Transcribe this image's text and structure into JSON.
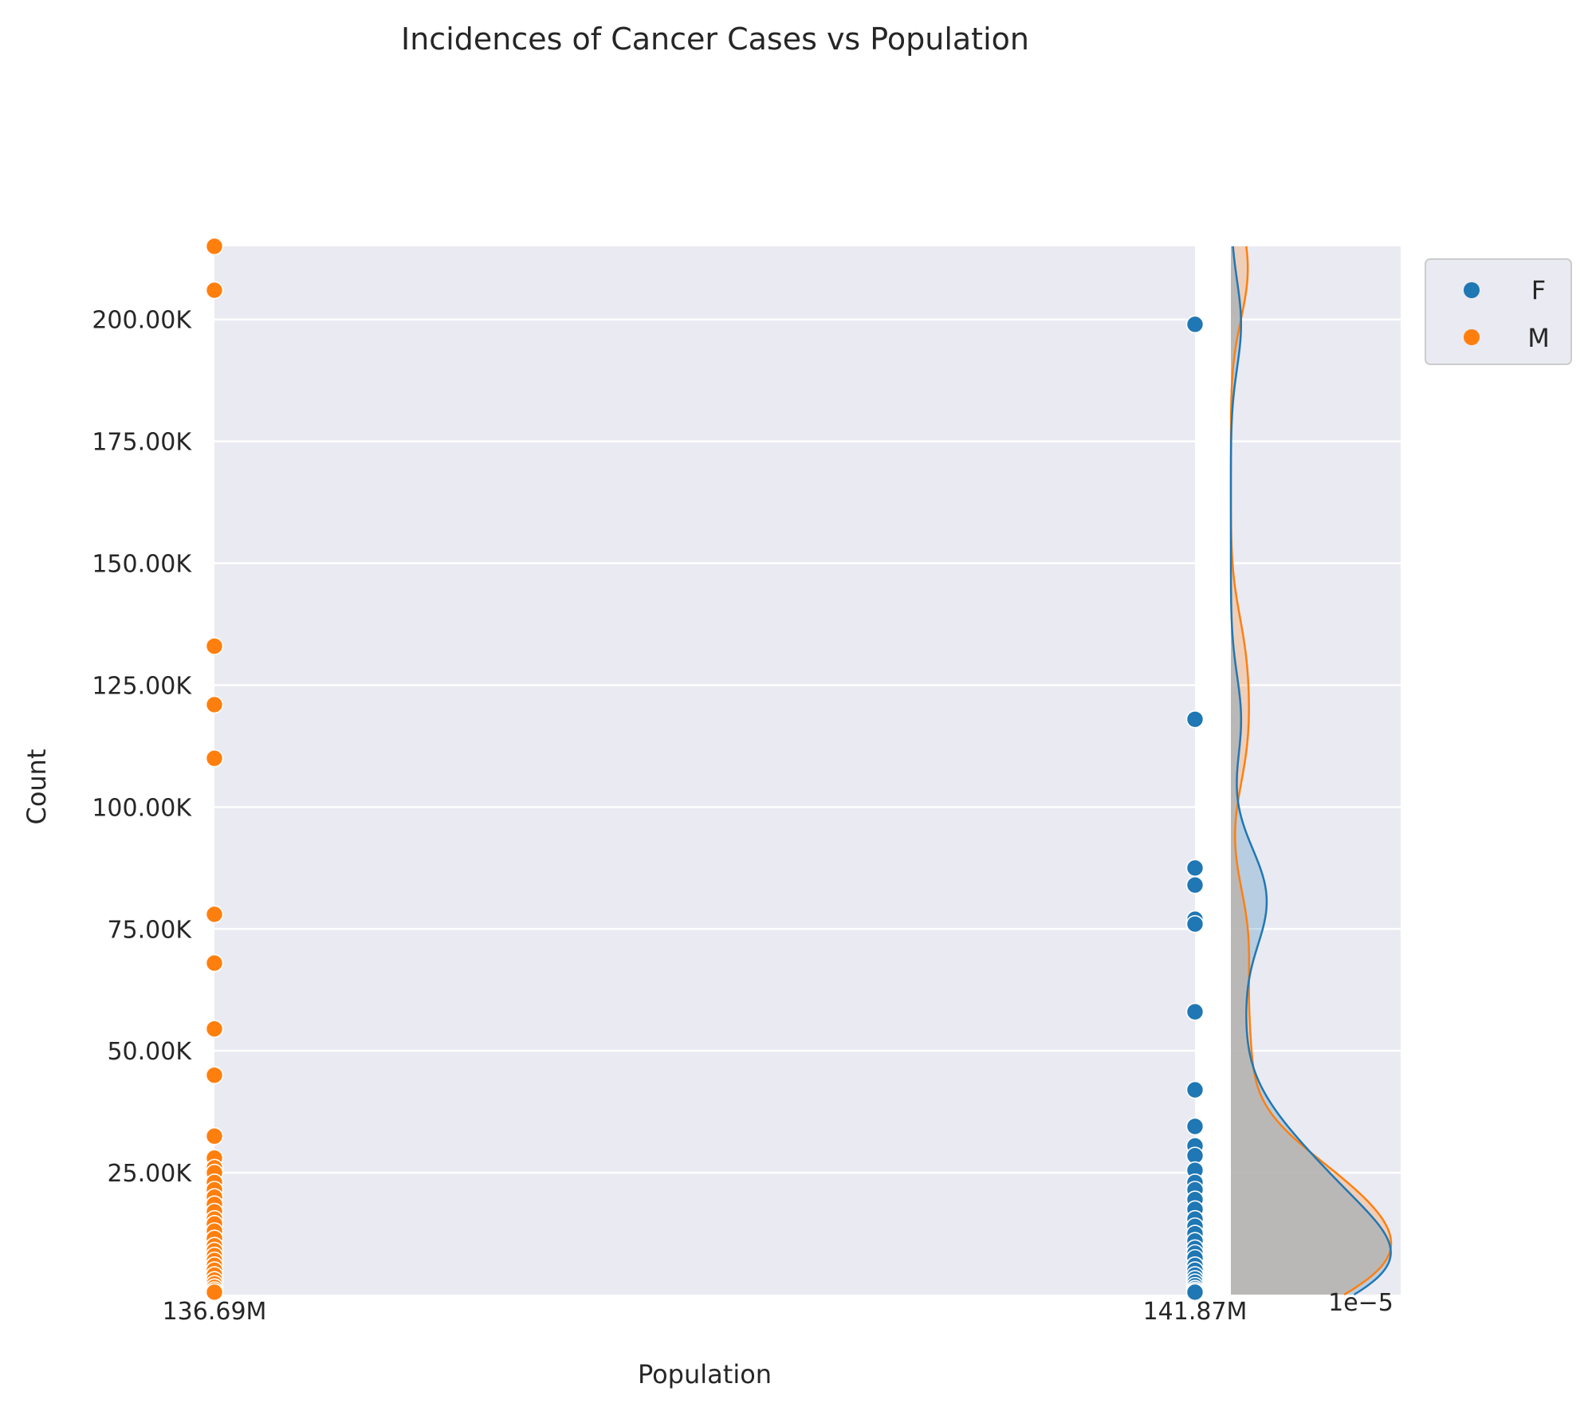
{
  "chart_data": {
    "type": "scatter",
    "title": "Incidences of Cancer Cases vs Population",
    "xlabel": "Population",
    "ylabel": "Count",
    "x_tick_labels": [
      "136.69M",
      "141.87M"
    ],
    "y_ticks": [
      25000,
      50000,
      75000,
      100000,
      125000,
      150000,
      175000,
      200000
    ],
    "y_tick_labels": [
      "25.00K",
      "50.00K",
      "75.00K",
      "100.00K",
      "125.00K",
      "150.00K",
      "175.00K",
      "200.00K"
    ],
    "ylim": [
      0,
      215000
    ],
    "marginal_axis_label": "1e−5",
    "legend": {
      "placement": "top-right outside",
      "entries": [
        "F",
        "M"
      ]
    },
    "colors": {
      "F": "#1f77b4",
      "M": "#ff7f0e",
      "background": "#eaeaf2",
      "overlap": "#b8b8b8"
    },
    "series": [
      {
        "name": "F",
        "x": "141.87M",
        "values": [
          199000,
          118000,
          87500,
          84000,
          77000,
          76000,
          58000,
          42000,
          34500,
          30500,
          28500,
          25500,
          23000,
          21500,
          19500,
          17500,
          15500,
          14000,
          12500,
          11000,
          9500,
          8500,
          7500,
          6000,
          5000,
          4000,
          3200,
          2500,
          1800,
          1200,
          800,
          500
        ]
      },
      {
        "name": "M",
        "x": "136.69M",
        "values": [
          215000,
          206000,
          133000,
          121000,
          110000,
          78000,
          68000,
          54500,
          45000,
          32500,
          28000,
          26000,
          25000,
          23000,
          21500,
          20000,
          18500,
          17000,
          15500,
          14500,
          13000,
          11500,
          10000,
          9000,
          8000,
          7000,
          6000,
          5000,
          4000,
          3000,
          2200,
          1500,
          900,
          500
        ]
      }
    ]
  }
}
